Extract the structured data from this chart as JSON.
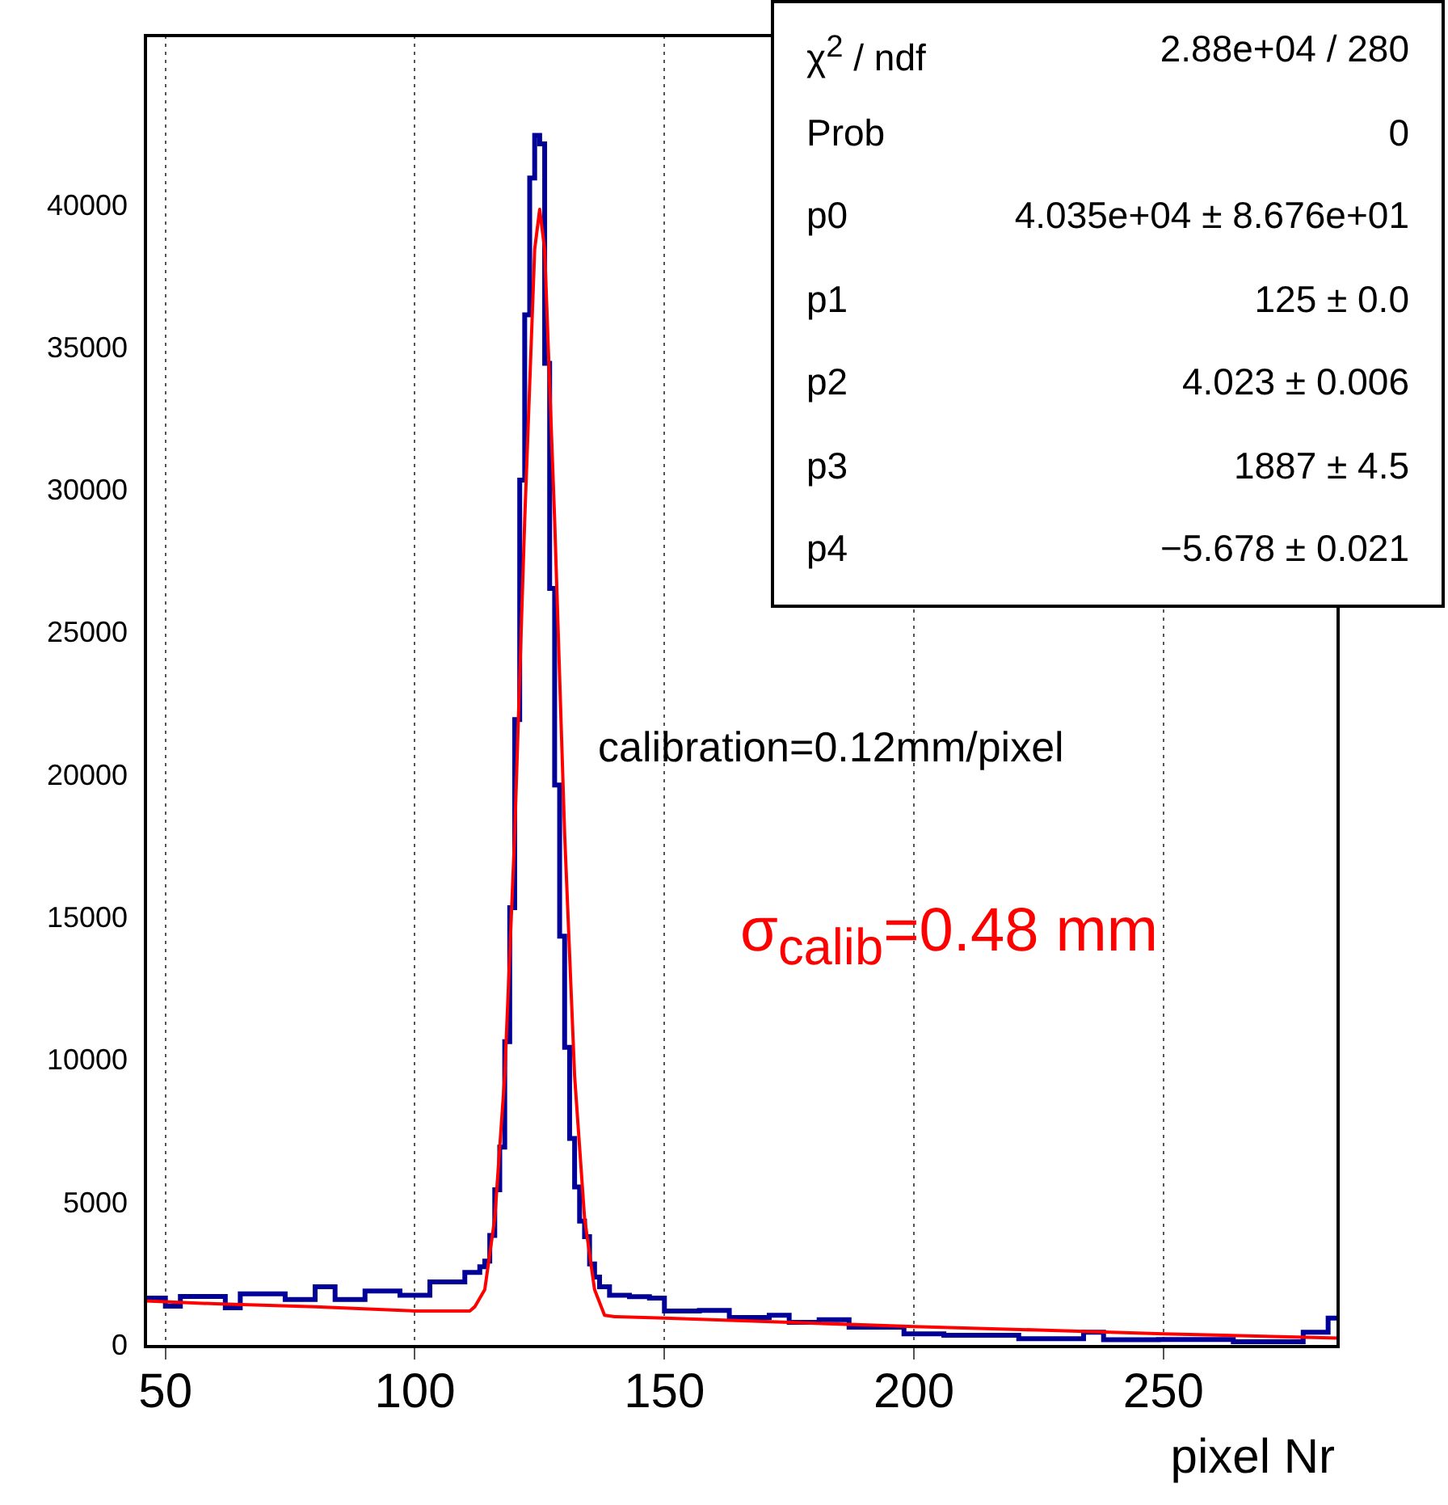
{
  "chart_data": {
    "type": "histogram",
    "xlabel": "pixel Nr",
    "xlim": [
      46,
      285
    ],
    "xticks": [
      50,
      100,
      150,
      200,
      250
    ],
    "ylim": [
      0,
      46000
    ],
    "yticks": [
      0,
      5000,
      10000,
      15000,
      20000,
      25000,
      30000,
      35000,
      40000
    ],
    "grid": "x",
    "legend": false,
    "series": [
      {
        "type": "histogram",
        "color": "#000099",
        "bins": [
          46,
          50,
          53,
          62,
          65,
          74,
          80,
          84,
          90,
          97,
          103,
          110,
          113,
          114,
          115,
          116,
          117,
          118,
          119,
          120,
          121,
          122,
          123,
          124,
          125,
          126,
          127,
          128,
          129,
          130,
          131,
          132,
          133,
          134,
          135,
          136,
          137,
          139,
          143,
          147,
          150,
          157,
          163,
          171,
          175,
          181,
          187,
          198,
          206,
          221,
          234,
          238,
          249,
          264,
          278,
          283,
          285
        ],
        "values": [
          1700,
          1420,
          1760,
          1360,
          1850,
          1650,
          2100,
          1650,
          1950,
          1800,
          2270,
          2600,
          2800,
          3000,
          3900,
          5500,
          7000,
          10700,
          15400,
          22000,
          30400,
          36200,
          41000,
          42500,
          42200,
          34500,
          26600,
          19700,
          14400,
          10500,
          7300,
          5600,
          4400,
          3860,
          2900,
          2440,
          2100,
          1800,
          1750,
          1700,
          1250,
          1270,
          1020,
          1100,
          850,
          940,
          680,
          450,
          400,
          280,
          500,
          240,
          250,
          170,
          500,
          1000
        ]
      },
      {
        "type": "line",
        "color": "#ff0000",
        "x": [
          46,
          60,
          80,
          100,
          111,
          112,
          114,
          116,
          118,
          120,
          122,
          124,
          125,
          126,
          128,
          130,
          132,
          134,
          136,
          138,
          140,
          150,
          175,
          200,
          225,
          250,
          285
        ],
        "values": [
          1600,
          1500,
          1400,
          1250,
          1250,
          1400,
          2000,
          4500,
          9500,
          18000,
          29000,
          38500,
          39900,
          38500,
          29000,
          18000,
          9500,
          4500,
          2000,
          1100,
          1050,
          1000,
          850,
          700,
          580,
          450,
          300
        ]
      }
    ],
    "annotations": [
      "χ$^{2}$ / ndf",
      "2.88e+04 / 280",
      "Prob",
      "0",
      "p0",
      "4.035e+04 ± 8.676e+01",
      "p1",
      "125 ± 0.0",
      "p2",
      "4.023 ± 0.006",
      "p3",
      "1887 ± 4.5",
      "p4",
      "−5.678 ± 0.021",
      "calibration=0.12mm/pixel",
      "σ$_{calib}$=0.48 mm"
    ]
  }
}
